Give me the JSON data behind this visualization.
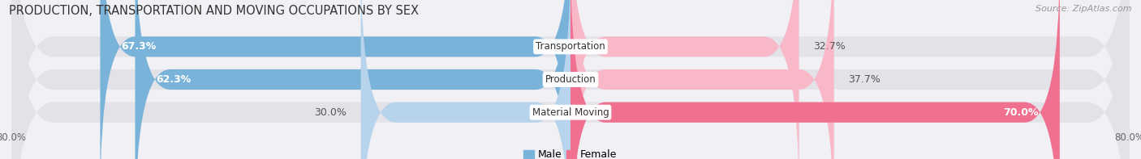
{
  "title": "PRODUCTION, TRANSPORTATION AND MOVING OCCUPATIONS BY SEX",
  "source": "Source: ZipAtlas.com",
  "categories": [
    "Transportation",
    "Production",
    "Material Moving"
  ],
  "male_values": [
    67.3,
    62.3,
    30.0
  ],
  "female_values": [
    32.7,
    37.7,
    70.0
  ],
  "male_color": "#7ab3d9",
  "female_color": "#f07090",
  "male_color_light": "#b8d4ec",
  "female_color_light": "#f8b8c8",
  "male_label": "Male",
  "female_label": "Female",
  "max_val": 80.0,
  "background_color": "#f0f0f5",
  "bar_bg_color": "#e2e2e8",
  "bar_height": 0.62,
  "title_fontsize": 10.5,
  "source_fontsize": 8,
  "label_fontsize": 9,
  "category_fontsize": 8.5,
  "tick_fontsize": 8.5
}
